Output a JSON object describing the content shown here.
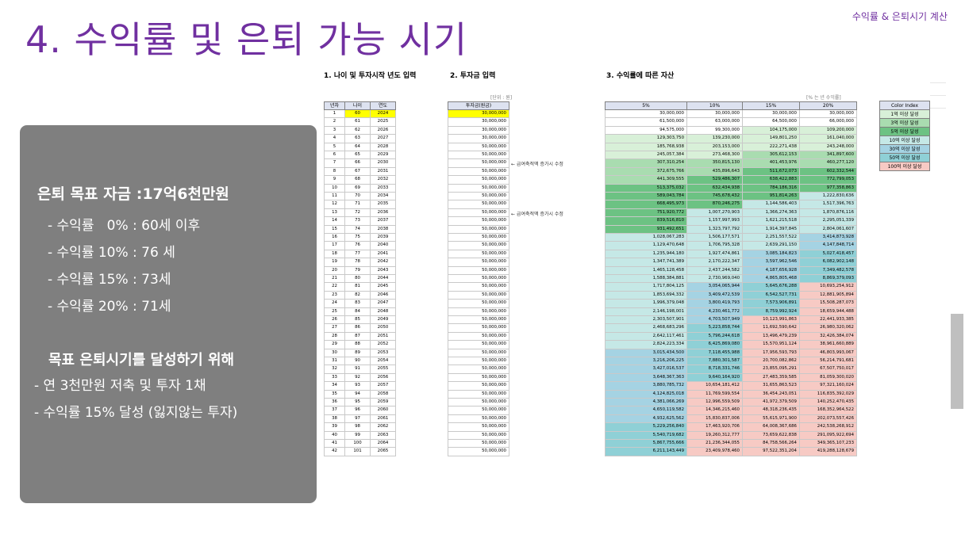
{
  "header": {
    "title": "4. 수익률 및 은퇴 가능 시기",
    "corner": "수익률 & 은퇴시기 계산"
  },
  "panel": {
    "goal": "은퇴 목표 자금 :17억6천만원",
    "lines": [
      "- 수익률   0% : 60세 이후",
      "- 수익률 10% : 76 세",
      "- 수익률 15% : 73세",
      "- 수익률 20% : 71세"
    ],
    "subtitle": "목표 은퇴시기를 달성하기 위해",
    "actions": [
      "- 연 3천만원 저축 및 투자 1채",
      "- 수익률 15% 달성 (잃지않는 투자)"
    ]
  },
  "sheet": {
    "section1": "1. 나이 및 투자시작 년도 입력",
    "section2": "2. 투자금 입력",
    "section3": "3. 수익률에 따른 자산",
    "unit_note": "[단위 : 원]",
    "rate_note": "[% 는 년 수익률]",
    "headers_left": [
      "년차",
      "나이",
      "연도"
    ],
    "header_invest": "투자금(원금)",
    "headers_rates": [
      "5%",
      "10%",
      "15%",
      "20%"
    ],
    "notes": [
      "← 급여축적액 증가시 수정",
      "← 급여축적액 증가시 수정"
    ],
    "highlight_color": "#ffff00"
  },
  "legend": {
    "title": "Color Index",
    "items": [
      "1억 이상 달성",
      "3억 이상 달성",
      "5억 이상 달성",
      "10억 이상 달성",
      "30억 이상 달성",
      "50억 이상 달성",
      "100억 이상 달성"
    ],
    "colors": [
      "#d8f0d8",
      "#a9dcb0",
      "#6cc283",
      "#c5e8e6",
      "#a5d3e3",
      "#8fd0d6",
      "#f7cac4"
    ]
  },
  "table": {
    "rows": [
      [
        "1",
        "60",
        "2024",
        "30,000,000",
        "30,000,000",
        "30,000,000",
        "30,000,000",
        "30,000,000"
      ],
      [
        "2",
        "61",
        "2025",
        "30,000,000",
        "61,500,000",
        "63,000,000",
        "64,500,000",
        "66,000,000"
      ],
      [
        "3",
        "62",
        "2026",
        "30,000,000",
        "94,575,000",
        "99,300,000",
        "104,175,000",
        "109,200,000"
      ],
      [
        "4",
        "63",
        "2027",
        "30,000,000",
        "129,303,750",
        "139,230,000",
        "149,801,250",
        "161,040,000"
      ],
      [
        "5",
        "64",
        "2028",
        "50,000,000",
        "185,768,938",
        "203,153,000",
        "222,271,438",
        "243,248,000"
      ],
      [
        "6",
        "65",
        "2029",
        "50,000,000",
        "245,057,384",
        "273,468,300",
        "305,612,153",
        "341,897,600"
      ],
      [
        "7",
        "66",
        "2030",
        "50,000,000",
        "307,310,254",
        "350,815,130",
        "401,453,976",
        "460,277,120"
      ],
      [
        "8",
        "67",
        "2031",
        "50,000,000",
        "372,675,766",
        "435,896,643",
        "511,672,073",
        "602,332,544"
      ],
      [
        "9",
        "68",
        "2032",
        "50,000,000",
        "441,309,555",
        "529,486,307",
        "638,422,883",
        "772,799,053"
      ],
      [
        "10",
        "69",
        "2033",
        "50,000,000",
        "513,375,032",
        "632,434,938",
        "784,186,316",
        "977,358,863"
      ],
      [
        "11",
        "70",
        "2034",
        "50,000,000",
        "589,043,784",
        "745,678,432",
        "951,814,263",
        "1,222,830,636"
      ],
      [
        "12",
        "71",
        "2035",
        "50,000,000",
        "668,495,973",
        "870,246,275",
        "1,144,586,403",
        "1,517,396,763"
      ],
      [
        "13",
        "72",
        "2036",
        "50,000,000",
        "751,920,772",
        "1,007,270,903",
        "1,366,274,363",
        "1,870,876,116"
      ],
      [
        "14",
        "73",
        "2037",
        "50,000,000",
        "839,516,810",
        "1,157,997,993",
        "1,621,215,518",
        "2,295,051,339"
      ],
      [
        "15",
        "74",
        "2038",
        "50,000,000",
        "931,492,651",
        "1,323,797,792",
        "1,914,397,845",
        "2,804,061,607"
      ],
      [
        "16",
        "75",
        "2039",
        "50,000,000",
        "1,028,067,283",
        "1,506,177,571",
        "2,251,557,522",
        "3,414,873,928"
      ],
      [
        "17",
        "76",
        "2040",
        "50,000,000",
        "1,129,470,648",
        "1,706,795,328",
        "2,639,291,150",
        "4,147,848,714"
      ],
      [
        "18",
        "77",
        "2041",
        "50,000,000",
        "1,235,944,180",
        "1,927,474,861",
        "3,085,184,823",
        "5,027,418,457"
      ],
      [
        "19",
        "78",
        "2042",
        "50,000,000",
        "1,347,741,389",
        "2,170,222,347",
        "3,597,962,546",
        "6,082,902,148"
      ],
      [
        "20",
        "79",
        "2043",
        "50,000,000",
        "1,465,128,458",
        "2,437,244,582",
        "4,187,656,928",
        "7,349,482,578"
      ],
      [
        "21",
        "80",
        "2044",
        "50,000,000",
        "1,588,384,881",
        "2,730,969,040",
        "4,865,805,468",
        "8,869,379,093"
      ],
      [
        "22",
        "81",
        "2045",
        "50,000,000",
        "1,717,804,125",
        "3,054,065,944",
        "5,645,676,288",
        "10,693,254,912"
      ],
      [
        "23",
        "82",
        "2046",
        "50,000,000",
        "1,853,694,332",
        "3,409,472,539",
        "6,542,527,731",
        "12,881,905,894"
      ],
      [
        "24",
        "83",
        "2047",
        "50,000,000",
        "1,996,379,048",
        "3,800,419,793",
        "7,573,906,891",
        "15,508,287,073"
      ],
      [
        "25",
        "84",
        "2048",
        "50,000,000",
        "2,146,198,001",
        "4,230,461,772",
        "8,759,992,924",
        "18,659,944,488"
      ],
      [
        "26",
        "85",
        "2049",
        "50,000,000",
        "2,303,507,901",
        "4,703,507,949",
        "10,123,991,863",
        "22,441,933,385"
      ],
      [
        "27",
        "86",
        "2050",
        "50,000,000",
        "2,468,683,296",
        "5,223,858,744",
        "11,692,590,642",
        "26,980,320,062"
      ],
      [
        "28",
        "87",
        "2051",
        "50,000,000",
        "2,642,117,461",
        "5,796,244,618",
        "13,496,479,239",
        "32,426,384,074"
      ],
      [
        "29",
        "88",
        "2052",
        "50,000,000",
        "2,824,223,334",
        "6,425,869,080",
        "15,570,951,124",
        "38,961,660,889"
      ],
      [
        "30",
        "89",
        "2053",
        "50,000,000",
        "3,015,434,500",
        "7,118,455,988",
        "17,956,593,793",
        "46,803,993,067"
      ],
      [
        "31",
        "90",
        "2054",
        "50,000,000",
        "3,216,206,225",
        "7,880,301,587",
        "20,700,082,862",
        "56,214,791,681"
      ],
      [
        "32",
        "91",
        "2055",
        "50,000,000",
        "3,427,016,537",
        "8,718,331,746",
        "23,855,095,291",
        "67,507,750,017"
      ],
      [
        "33",
        "92",
        "2056",
        "50,000,000",
        "3,648,367,363",
        "9,640,164,920",
        "27,483,359,585",
        "81,059,300,020"
      ],
      [
        "34",
        "93",
        "2057",
        "50,000,000",
        "3,880,785,732",
        "10,654,181,412",
        "31,655,863,523",
        "97,321,160,024"
      ],
      [
        "35",
        "94",
        "2058",
        "50,000,000",
        "4,124,825,018",
        "11,769,599,554",
        "36,454,243,051",
        "116,835,392,029"
      ],
      [
        "36",
        "95",
        "2059",
        "50,000,000",
        "4,381,066,269",
        "12,996,559,509",
        "41,972,379,509",
        "140,252,470,435"
      ],
      [
        "37",
        "96",
        "2060",
        "50,000,000",
        "4,650,119,582",
        "14,346,215,460",
        "48,318,236,435",
        "168,352,964,522"
      ],
      [
        "38",
        "97",
        "2061",
        "50,000,000",
        "4,932,625,562",
        "15,830,837,006",
        "55,615,971,900",
        "202,073,557,426"
      ],
      [
        "39",
        "98",
        "2062",
        "50,000,000",
        "5,229,256,840",
        "17,463,920,706",
        "64,008,367,686",
        "242,538,268,912"
      ],
      [
        "40",
        "99",
        "2063",
        "50,000,000",
        "5,540,719,682",
        "19,260,312,777",
        "73,659,622,838",
        "291,095,922,694"
      ],
      [
        "41",
        "100",
        "2064",
        "50,000,000",
        "5,867,755,666",
        "21,236,344,055",
        "84,758,566,264",
        "349,365,107,233"
      ],
      [
        "42",
        "101",
        "2065",
        "50,000,000",
        "6,211,143,449",
        "23,409,978,460",
        "97,522,351,204",
        "419,288,128,679"
      ]
    ]
  }
}
